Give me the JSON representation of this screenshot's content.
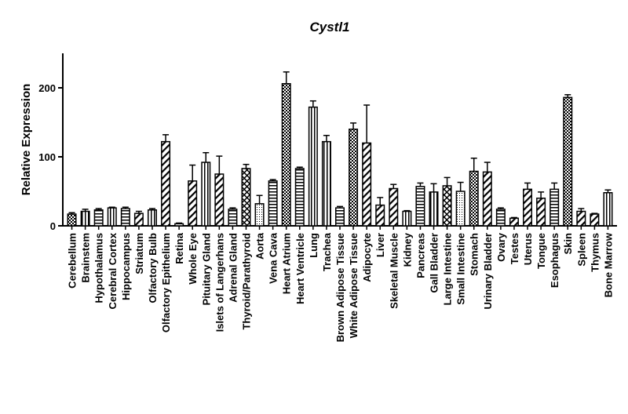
{
  "chart_data": {
    "type": "bar",
    "title": "Cystl1",
    "xlabel": "",
    "ylabel": "Relative Expression",
    "ylim": [
      0,
      250
    ],
    "yticks": [
      0,
      100,
      200
    ],
    "grid": false,
    "legend": "none",
    "bar_color": "#000000",
    "categories": [
      "Cerebellum",
      "Brainstem",
      "Hypothalamus",
      "Cerebral Cortex",
      "Hippocampus",
      "Striatum",
      "Olfactory Bulb",
      "Olfactory Epithelium",
      "Retina",
      "Whole Eye",
      "Pituitary Gland",
      "Islets of Langerhans",
      "Adrenal Gland",
      "Thyroid/Parathyroid",
      "Aorta",
      "Vena Cava",
      "Heart Atrium",
      "Heart Ventricle",
      "Lung",
      "Trachea",
      "Brown Adipose Tissue",
      "White Adipose Tissue",
      "Adipocyte",
      "Liver",
      "Skeletal Muscle",
      "Kidney",
      "Pancreas",
      "Gall Bladder",
      "Large Intestine",
      "Small Intestine",
      "Stomach",
      "Urinary Bladder",
      "Ovary",
      "Testes",
      "Uterus",
      "Tongue",
      "Esophagus",
      "Skin",
      "Spleen",
      "Thymus",
      "Bone Marrow"
    ],
    "values": [
      17,
      21,
      23,
      26,
      25,
      18,
      23,
      122,
      3,
      65,
      92,
      75,
      24,
      83,
      32,
      65,
      206,
      83,
      172,
      122,
      26,
      140,
      120,
      30,
      54,
      21,
      57,
      49,
      58,
      50,
      79,
      78,
      24,
      11,
      53,
      40,
      53,
      186,
      21,
      17,
      48
    ],
    "errors": [
      2,
      3,
      2,
      1,
      2,
      3,
      2,
      10,
      1,
      23,
      14,
      26,
      2,
      6,
      12,
      2,
      17,
      2,
      9,
      9,
      2,
      9,
      55,
      11,
      6,
      1,
      5,
      12,
      12,
      13,
      19,
      14,
      2,
      1,
      9,
      9,
      9,
      4,
      4,
      1,
      4
    ],
    "patterns": [
      "check",
      "vline",
      "hline",
      "vline",
      "hline",
      "diag",
      "vline",
      "diag",
      "dots",
      "diag",
      "vline",
      "diag",
      "hline",
      "cross",
      "dots",
      "hline",
      "check",
      "hline",
      "vline",
      "vline",
      "hline",
      "check",
      "diag",
      "diag",
      "diag",
      "vline",
      "hline",
      "vline",
      "cross",
      "dots",
      "check",
      "diag",
      "hline",
      "diag",
      "diag",
      "diag",
      "hline",
      "check",
      "diag",
      "diag",
      "vline"
    ]
  }
}
